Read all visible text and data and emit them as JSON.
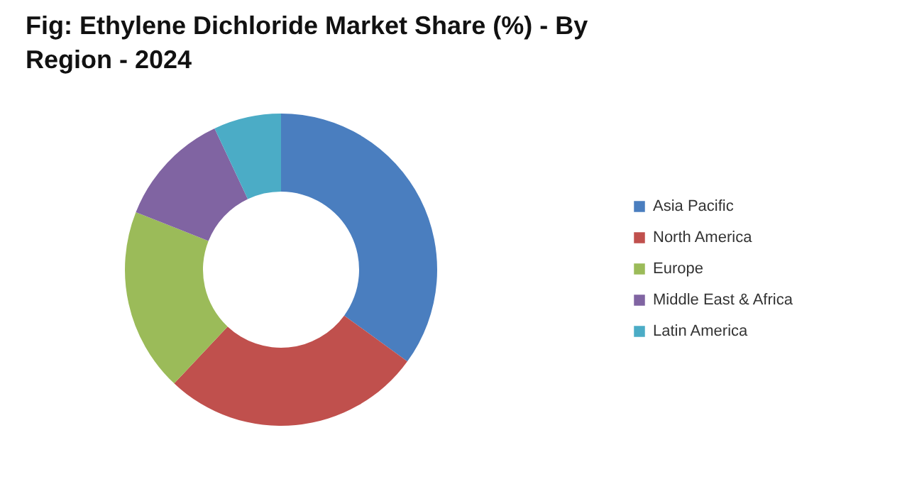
{
  "chart_data": {
    "type": "donut",
    "title": "Fig: Ethylene Dichloride Market Share (%) - By Region - 2024",
    "categories": [
      "Asia Pacific",
      "North America",
      "Europe",
      "Middle East & Africa",
      "Latin America"
    ],
    "values": [
      35,
      27,
      19,
      12,
      7
    ],
    "colors": [
      "#4a7ebf",
      "#c0504d",
      "#9bbb59",
      "#8064a2",
      "#4bacc6"
    ],
    "legend": "right"
  }
}
